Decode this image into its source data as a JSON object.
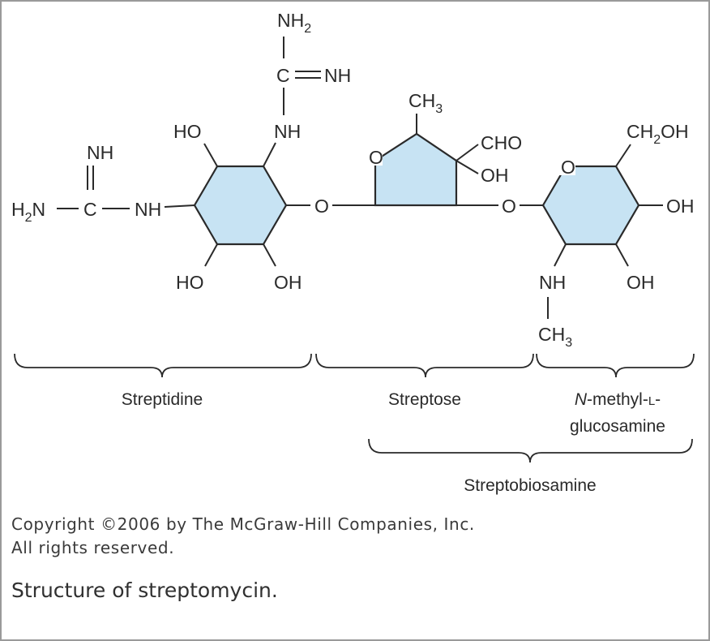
{
  "diagram": {
    "labels": {
      "nh2_top": "NH",
      "nh2_top_sub": "2",
      "c_top": "C",
      "nh_imine_top": "NH",
      "nh_link_top": "NH",
      "nh_imine_left": "NH",
      "h2n_left": "H",
      "h2n_left_sub": "2",
      "h2n_left_n": "N",
      "c_left": "C",
      "nh_link_left": "NH",
      "ho_top_left": "HO",
      "ho_bottom_left": "HO",
      "oh_bottom_streptidine": "OH",
      "o_link_1": "O",
      "o_ring_streptose": "O",
      "ch3_streptose": "CH",
      "ch3_streptose_sub": "3",
      "cho": "CHO",
      "oh_streptose": "OH",
      "o_link_2": "O",
      "o_ring_glucosamine": "O",
      "ch2oh": "CH",
      "ch2oh_sub": "2",
      "ch2oh_end": "OH",
      "oh_right": "OH",
      "nh_glucosamine": "NH",
      "ch3_glucosamine": "CH",
      "ch3_glucosamine_sub": "3",
      "oh_bottom_glucosamine": "OH"
    },
    "groups": {
      "streptidine": "Streptidine",
      "streptose": "Streptose",
      "n_methyl_line1_italic": "N",
      "n_methyl_line1_rest": "-methyl-",
      "n_methyl_line1_smallcaps": "L",
      "n_methyl_line1_end": "-",
      "n_methyl_line2": "glucosamine",
      "streptobiosamine": "Streptobiosamine"
    },
    "colors": {
      "ring_fill": "#c7e3f3",
      "line": "#2a2a2a"
    }
  },
  "copyright": {
    "line1": "Copyright ©2006 by The McGraw-Hill Companies, Inc.",
    "line2": "All rights reserved."
  },
  "caption": "Structure of streptomycin."
}
